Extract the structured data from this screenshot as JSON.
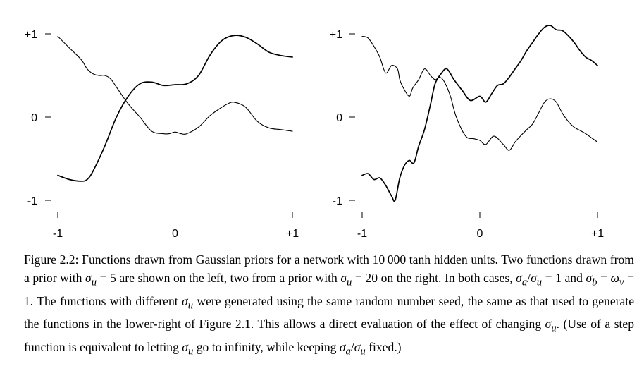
{
  "chart_data": [
    {
      "type": "line",
      "panel": "left",
      "xlim": [
        -1,
        1
      ],
      "ylim": [
        -1,
        1
      ],
      "x_ticks": [
        "-1",
        "0",
        "+1"
      ],
      "y_ticks": [
        "+1",
        "0",
        "-1"
      ],
      "series": [
        {
          "points": [
            [
              -1,
              0.97
            ],
            [
              -0.9,
              0.83
            ],
            [
              -0.8,
              0.69
            ],
            [
              -0.75,
              0.58
            ],
            [
              -0.7,
              0.52
            ],
            [
              -0.65,
              0.5
            ],
            [
              -0.6,
              0.5
            ],
            [
              -0.55,
              0.46
            ],
            [
              -0.5,
              0.36
            ],
            [
              -0.4,
              0.16
            ],
            [
              -0.3,
              0.0
            ],
            [
              -0.2,
              -0.17
            ],
            [
              -0.1,
              -0.2
            ],
            [
              -0.05,
              -0.2
            ],
            [
              0.0,
              -0.18
            ],
            [
              0.05,
              -0.2
            ],
            [
              0.1,
              -0.2
            ],
            [
              0.2,
              -0.12
            ],
            [
              0.3,
              0.02
            ],
            [
              0.4,
              0.12
            ],
            [
              0.45,
              0.16
            ],
            [
              0.5,
              0.18
            ],
            [
              0.6,
              0.12
            ],
            [
              0.7,
              -0.05
            ],
            [
              0.8,
              -0.13
            ],
            [
              0.9,
              -0.15
            ],
            [
              1.0,
              -0.17
            ]
          ]
        },
        {
          "points": [
            [
              -1,
              -0.7
            ],
            [
              -0.9,
              -0.75
            ],
            [
              -0.8,
              -0.77
            ],
            [
              -0.75,
              -0.75
            ],
            [
              -0.7,
              -0.65
            ],
            [
              -0.6,
              -0.35
            ],
            [
              -0.5,
              0.0
            ],
            [
              -0.4,
              0.25
            ],
            [
              -0.3,
              0.4
            ],
            [
              -0.2,
              0.42
            ],
            [
              -0.1,
              0.38
            ],
            [
              0.0,
              0.39
            ],
            [
              0.1,
              0.4
            ],
            [
              0.2,
              0.5
            ],
            [
              0.3,
              0.75
            ],
            [
              0.4,
              0.92
            ],
            [
              0.5,
              0.98
            ],
            [
              0.6,
              0.96
            ],
            [
              0.7,
              0.88
            ],
            [
              0.8,
              0.78
            ],
            [
              0.9,
              0.74
            ],
            [
              1.0,
              0.72
            ]
          ]
        }
      ]
    },
    {
      "type": "line",
      "panel": "right",
      "xlim": [
        -1,
        1
      ],
      "ylim": [
        -1,
        1
      ],
      "x_ticks": [
        "-1",
        "0",
        "+1"
      ],
      "y_ticks": [
        "+1",
        "0",
        "-1"
      ],
      "series": [
        {
          "points": [
            [
              -1,
              0.97
            ],
            [
              -0.95,
              0.95
            ],
            [
              -0.9,
              0.85
            ],
            [
              -0.85,
              0.72
            ],
            [
              -0.8,
              0.53
            ],
            [
              -0.75,
              0.62
            ],
            [
              -0.7,
              0.58
            ],
            [
              -0.68,
              0.45
            ],
            [
              -0.65,
              0.35
            ],
            [
              -0.6,
              0.25
            ],
            [
              -0.57,
              0.35
            ],
            [
              -0.52,
              0.45
            ],
            [
              -0.47,
              0.58
            ],
            [
              -0.42,
              0.5
            ],
            [
              -0.38,
              0.45
            ],
            [
              -0.34,
              0.48
            ],
            [
              -0.3,
              0.42
            ],
            [
              -0.25,
              0.25
            ],
            [
              -0.2,
              0.0
            ],
            [
              -0.12,
              -0.23
            ],
            [
              -0.05,
              -0.26
            ],
            [
              0.0,
              -0.28
            ],
            [
              0.05,
              -0.33
            ],
            [
              0.12,
              -0.23
            ],
            [
              0.2,
              -0.33
            ],
            [
              0.25,
              -0.4
            ],
            [
              0.3,
              -0.3
            ],
            [
              0.35,
              -0.22
            ],
            [
              0.4,
              -0.15
            ],
            [
              0.45,
              -0.08
            ],
            [
              0.5,
              0.05
            ],
            [
              0.55,
              0.18
            ],
            [
              0.6,
              0.22
            ],
            [
              0.65,
              0.18
            ],
            [
              0.7,
              0.05
            ],
            [
              0.75,
              -0.05
            ],
            [
              0.8,
              -0.12
            ],
            [
              0.85,
              -0.16
            ],
            [
              0.9,
              -0.2
            ],
            [
              0.95,
              -0.25
            ],
            [
              1.0,
              -0.3
            ]
          ]
        },
        {
          "points": [
            [
              -1,
              -0.7
            ],
            [
              -0.95,
              -0.68
            ],
            [
              -0.9,
              -0.75
            ],
            [
              -0.85,
              -0.73
            ],
            [
              -0.8,
              -0.82
            ],
            [
              -0.75,
              -0.95
            ],
            [
              -0.72,
              -1.0
            ],
            [
              -0.68,
              -0.73
            ],
            [
              -0.64,
              -0.58
            ],
            [
              -0.6,
              -0.52
            ],
            [
              -0.56,
              -0.55
            ],
            [
              -0.52,
              -0.35
            ],
            [
              -0.47,
              -0.15
            ],
            [
              -0.42,
              0.15
            ],
            [
              -0.38,
              0.4
            ],
            [
              -0.33,
              0.52
            ],
            [
              -0.28,
              0.58
            ],
            [
              -0.22,
              0.45
            ],
            [
              -0.15,
              0.32
            ],
            [
              -0.08,
              0.2
            ],
            [
              0.0,
              0.25
            ],
            [
              0.05,
              0.18
            ],
            [
              0.1,
              0.28
            ],
            [
              0.15,
              0.38
            ],
            [
              0.2,
              0.4
            ],
            [
              0.25,
              0.48
            ],
            [
              0.3,
              0.58
            ],
            [
              0.35,
              0.68
            ],
            [
              0.4,
              0.8
            ],
            [
              0.45,
              0.9
            ],
            [
              0.5,
              1.0
            ],
            [
              0.55,
              1.08
            ],
            [
              0.6,
              1.1
            ],
            [
              0.65,
              1.05
            ],
            [
              0.7,
              1.04
            ],
            [
              0.75,
              0.98
            ],
            [
              0.8,
              0.9
            ],
            [
              0.85,
              0.8
            ],
            [
              0.9,
              0.72
            ],
            [
              0.95,
              0.68
            ],
            [
              1.0,
              0.62
            ]
          ]
        }
      ]
    }
  ],
  "caption": {
    "t1": "Figure 2.2: Functions drawn from Gaussian priors for a network with 10 000 tanh hidden units. Two functions drawn from a prior with ",
    "m1": "σ",
    "s1": "u",
    "t2": " = 5 are shown on the left, two from a prior with ",
    "m2": "σ",
    "s2": "u",
    "t3": " = 20 on the right. In both cases, ",
    "m3": "σ",
    "s3": "a",
    "t4": "/",
    "m4": "σ",
    "s4": "u",
    "t5": " = 1 and ",
    "m5": "σ",
    "s5": "b",
    "t6": " = ",
    "m6": "ω",
    "s6": "v",
    "t7": " = 1. The functions with different ",
    "m7": "σ",
    "s7": "u",
    "t8": " were generated using the same random number seed, the same as that used to generate the functions in the lower-right of Figure 2.1. This allows a direct evaluation of the effect of changing ",
    "m8": "σ",
    "s8": "u",
    "t9": ". (Use of a step function is equivalent to letting ",
    "m9": "σ",
    "s9": "u",
    "t10": " go to infinity, while keeping ",
    "m10": "σ",
    "s10": "a",
    "t11": "/",
    "m11": "σ",
    "s11": "u",
    "t12": " fixed.)"
  }
}
